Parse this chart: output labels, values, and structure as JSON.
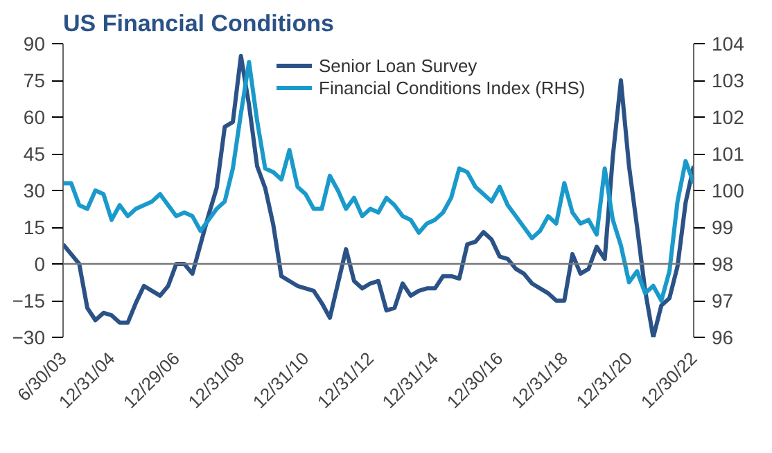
{
  "chart_data": {
    "type": "line",
    "title": "US Financial Conditions",
    "categories": [
      "6/30/03",
      null,
      null,
      null,
      null,
      null,
      "12/31/04",
      null,
      null,
      null,
      null,
      null,
      null,
      null,
      "12/29/06",
      null,
      null,
      null,
      null,
      null,
      null,
      null,
      "12/31/08",
      null,
      null,
      null,
      null,
      null,
      null,
      null,
      "12/31/10",
      null,
      null,
      null,
      null,
      null,
      null,
      null,
      "12/31/12",
      null,
      null,
      null,
      null,
      null,
      null,
      null,
      "12/31/14",
      null,
      null,
      null,
      null,
      null,
      null,
      null,
      "12/30/16",
      null,
      null,
      null,
      null,
      null,
      null,
      null,
      "12/31/18",
      null,
      null,
      null,
      null,
      null,
      null,
      null,
      "12/31/20",
      null,
      null,
      null,
      null,
      null,
      null,
      null,
      "12/30/22"
    ],
    "series": [
      {
        "name": "Senior Loan Survey",
        "color": "#2b5287",
        "values": [
          8,
          4,
          0,
          -18,
          -23,
          -20,
          -21,
          -24,
          -24,
          -16,
          -9,
          -11,
          -13,
          -9,
          0,
          0,
          -4,
          8,
          20,
          31,
          56,
          58,
          85,
          65,
          40,
          31,
          16,
          -5,
          -7,
          -9,
          -10,
          -11,
          -16,
          -22,
          -8,
          6,
          -7,
          -10,
          -8,
          -7,
          -19,
          -18,
          -8,
          -13,
          -11,
          -10,
          -10,
          -5,
          -5,
          -6,
          8,
          9,
          13,
          10,
          3,
          2,
          -2,
          -4,
          -8,
          -10,
          -12,
          -15,
          -15,
          4,
          -4,
          -2,
          7,
          2,
          44,
          75,
          40,
          15,
          -11,
          -30,
          -17,
          -14,
          -1,
          25,
          40
        ]
      },
      {
        "name": "Financial Conditions Index (RHS)",
        "color": "#1a9acb",
        "axis": "y2",
        "values": [
          100.2,
          100.2,
          99.6,
          99.5,
          100.0,
          99.9,
          99.2,
          99.6,
          99.3,
          99.5,
          99.6,
          99.7,
          99.9,
          99.6,
          99.3,
          99.4,
          99.3,
          98.9,
          99.2,
          99.5,
          99.7,
          100.6,
          102.1,
          103.5,
          101.9,
          100.6,
          100.5,
          100.3,
          101.1,
          100.1,
          99.9,
          99.5,
          99.5,
          100.4,
          100.0,
          99.5,
          99.8,
          99.3,
          99.5,
          99.4,
          99.8,
          99.6,
          99.3,
          99.2,
          98.85,
          99.1,
          99.2,
          99.4,
          99.8,
          100.6,
          100.5,
          100.1,
          99.9,
          99.7,
          100.1,
          99.6,
          99.3,
          99.0,
          98.7,
          98.9,
          99.3,
          99.1,
          100.2,
          99.4,
          99.1,
          99.2,
          98.8,
          100.6,
          99.2,
          98.5,
          97.5,
          97.8,
          97.2,
          97.4,
          97.0,
          97.8,
          99.7,
          100.8,
          100.2
        ]
      }
    ],
    "ylim": [
      -30,
      90
    ],
    "yticks": [
      -30,
      -15,
      0,
      15,
      30,
      45,
      60,
      75,
      90
    ],
    "y2lim": [
      96,
      104
    ],
    "y2ticks": [
      96,
      97,
      98,
      99,
      100,
      101,
      102,
      103,
      104
    ],
    "ref_lines": [
      {
        "axis": "y",
        "value": 0,
        "color": "#777777"
      }
    ],
    "legend": "top",
    "grid": false,
    "line_style": "solid",
    "marker": "none"
  }
}
